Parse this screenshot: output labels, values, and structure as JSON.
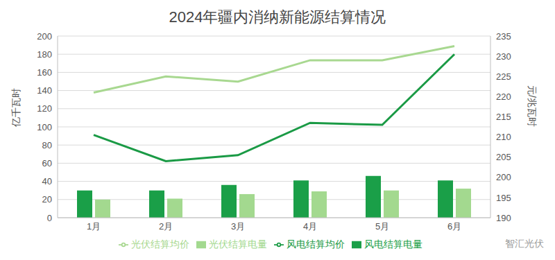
{
  "chart_data": {
    "type": "bar",
    "title": "2024年疆内消纳新能源结算情况",
    "categories": [
      "1月",
      "2月",
      "3月",
      "4月",
      "5月",
      "6月"
    ],
    "series": [
      {
        "name": "风电结算电量",
        "type": "bar",
        "color": "#1a9f48",
        "values": [
          30,
          30,
          36,
          41,
          46,
          41
        ]
      },
      {
        "name": "光伏结算电量",
        "type": "bar",
        "color": "#a3d98f",
        "values": [
          20,
          21,
          26,
          29,
          30,
          32
        ]
      },
      {
        "name": "光伏结算均价",
        "type": "line",
        "axis": "y2",
        "color": "#a8d890",
        "values": [
          221,
          225,
          223.7,
          229,
          229,
          232.5
        ]
      },
      {
        "name": "风电结算均价",
        "type": "line",
        "axis": "y2",
        "color": "#1a9a45",
        "values": [
          210.5,
          204,
          205.5,
          213.5,
          213,
          230.5
        ]
      }
    ],
    "y_label": "亿千瓦时",
    "y2_label": "元/兆瓦时",
    "ylim": [
      0,
      200
    ],
    "yticks": [
      0,
      20,
      40,
      60,
      80,
      100,
      120,
      140,
      160,
      180,
      200
    ],
    "y2lim": [
      190,
      235
    ],
    "y2ticks": [
      190,
      195,
      200,
      205,
      210,
      215,
      220,
      225,
      230,
      235
    ],
    "grid": true,
    "legend": "bottom",
    "annotations": [
      "智汇光伏"
    ]
  }
}
